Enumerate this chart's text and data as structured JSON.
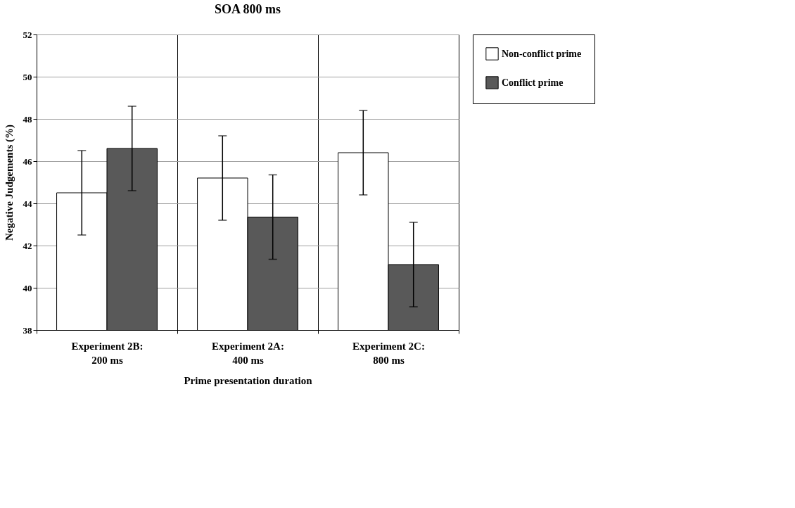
{
  "chart_data": {
    "type": "bar",
    "title": "SOA 800 ms",
    "xlabel": "Prime presentation duration",
    "ylabel": "Negative Judgements (%)",
    "categories": [
      "Experiment 2B:\n200 ms",
      "Experiment 2A:\n400 ms",
      "Experiment 2C:\n800 ms"
    ],
    "series": [
      {
        "name": "Non-conflict prime",
        "color": "#ffffff",
        "values": [
          44.5,
          45.2,
          46.4
        ],
        "errors": [
          2,
          2,
          2
        ]
      },
      {
        "name": "Conflict prime",
        "color": "#595959",
        "values": [
          46.6,
          43.35,
          41.1
        ],
        "errors": [
          2,
          2,
          2
        ]
      }
    ],
    "ylim": [
      38,
      52
    ],
    "yticks": [
      38,
      40,
      42,
      44,
      46,
      48,
      50,
      52
    ],
    "grid": "y",
    "legend": "right"
  }
}
